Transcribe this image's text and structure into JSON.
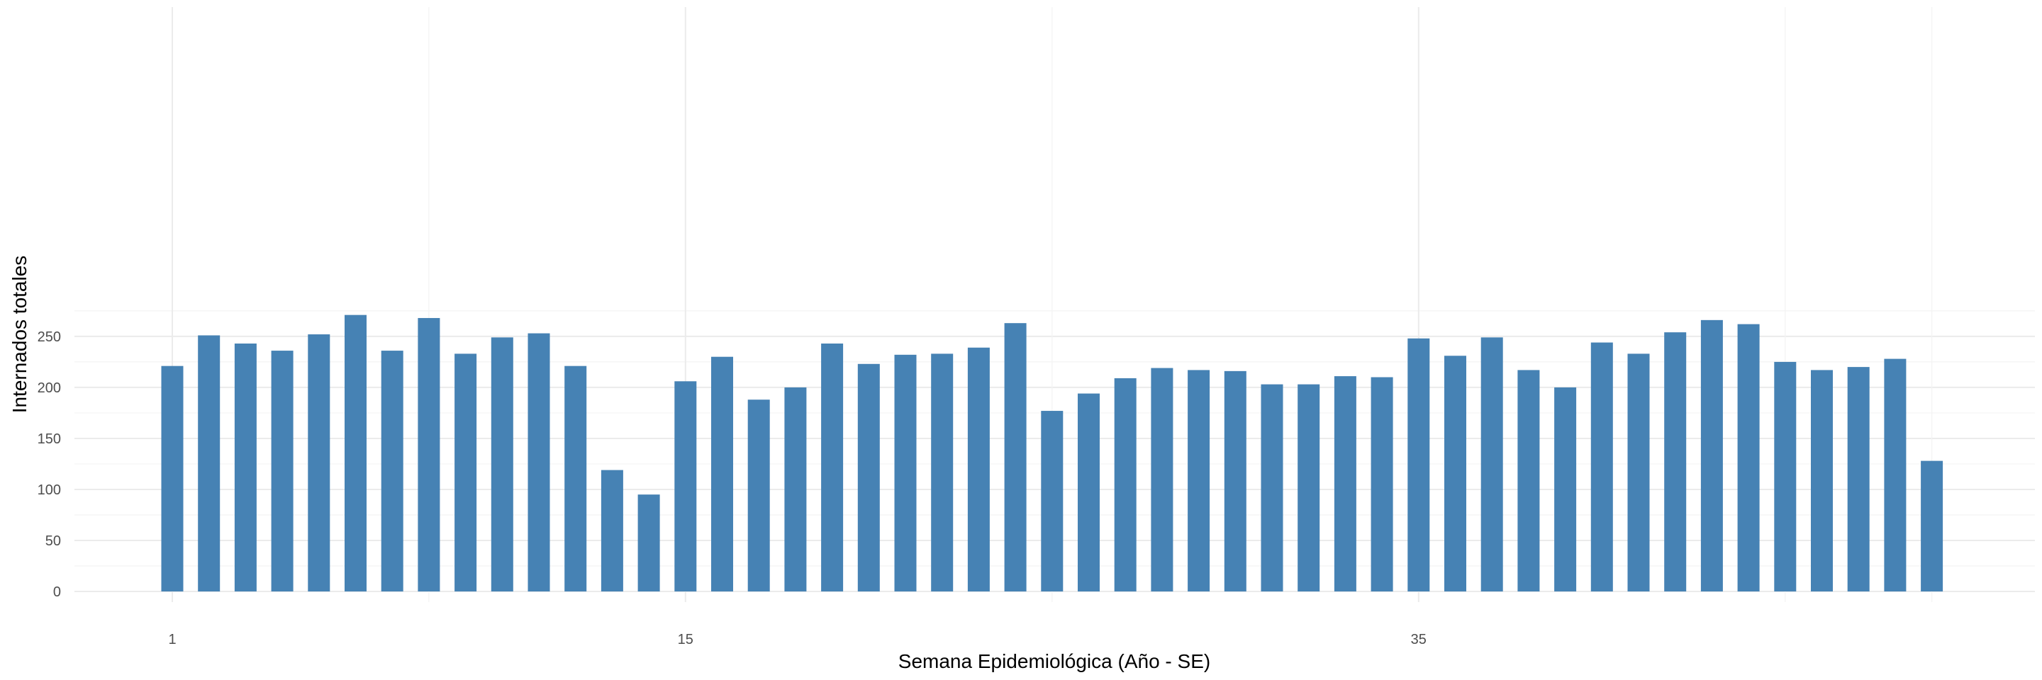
{
  "chart_data": {
    "type": "bar",
    "xlabel": "Semana Epidemiológica (Año - SE)",
    "ylabel": "Internados totales",
    "x": [
      1,
      2,
      3,
      4,
      5,
      6,
      7,
      8,
      9,
      10,
      11,
      12,
      13,
      14,
      15,
      16,
      17,
      18,
      19,
      20,
      21,
      22,
      23,
      24,
      25,
      26,
      27,
      28,
      29,
      30,
      31,
      32,
      33,
      34,
      35,
      36,
      37,
      38,
      39,
      40,
      41,
      42,
      43,
      44,
      45,
      46,
      47,
      48,
      49
    ],
    "values": [
      221,
      251,
      243,
      236,
      252,
      271,
      236,
      268,
      233,
      249,
      253,
      221,
      119,
      95,
      206,
      230,
      188,
      200,
      243,
      223,
      232,
      233,
      239,
      263,
      177,
      194,
      209,
      219,
      217,
      216,
      203,
      203,
      211,
      210,
      248,
      231,
      249,
      217,
      200,
      244,
      233,
      254,
      266,
      262,
      225,
      217,
      220,
      228,
      128
    ],
    "x_ticks": [
      1,
      15,
      35
    ],
    "x_tick_labels": [
      "1",
      "15",
      "35"
    ],
    "y_ticks": [
      0,
      50,
      100,
      150,
      200,
      250
    ],
    "y_tick_labels": [
      "0",
      "50",
      "100",
      "150",
      "200",
      "250"
    ],
    "ylim": [
      0,
      285
    ],
    "grid": true,
    "bar_color": "#4682B4",
    "legend": null
  }
}
